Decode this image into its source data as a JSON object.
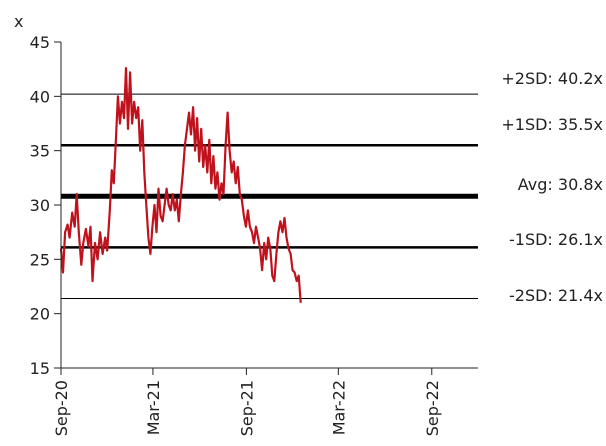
{
  "chart_data": {
    "type": "line",
    "title": "",
    "xlabel": "",
    "ylabel": "x",
    "ylim": [
      15,
      45
    ],
    "yticks": [
      "15",
      "20",
      "25",
      "30",
      "35",
      "40",
      "45"
    ],
    "xticks": [
      {
        "label": "Sep-20",
        "date": "2020-09-01"
      },
      {
        "label": "Mar-21",
        "date": "2021-03-01"
      },
      {
        "label": "Sep-21",
        "date": "2021-09-01"
      },
      {
        "label": "Mar-22",
        "date": "2022-03-01"
      },
      {
        "label": "Sep-22",
        "date": "2022-09-01"
      }
    ],
    "xlim": [
      "2020-09-01",
      "2022-12-01"
    ],
    "grid": false,
    "series": [
      {
        "color": "#c0121c",
        "points": [
          [
            "2020-09-01",
            26.0
          ],
          [
            "2020-09-05",
            23.8
          ],
          [
            "2020-09-09",
            27.5
          ],
          [
            "2020-09-14",
            28.2
          ],
          [
            "2020-09-18",
            27.0
          ],
          [
            "2020-09-23",
            29.3
          ],
          [
            "2020-09-28",
            28.0
          ],
          [
            "2020-10-02",
            31.0
          ],
          [
            "2020-10-06",
            27.5
          ],
          [
            "2020-10-11",
            24.5
          ],
          [
            "2020-10-15",
            26.5
          ],
          [
            "2020-10-20",
            27.8
          ],
          [
            "2020-10-25",
            26.2
          ],
          [
            "2020-10-29",
            28.0
          ],
          [
            "2020-11-02",
            23.0
          ],
          [
            "2020-11-07",
            26.5
          ],
          [
            "2020-11-12",
            25.0
          ],
          [
            "2020-11-17",
            27.5
          ],
          [
            "2020-11-22",
            25.5
          ],
          [
            "2020-11-27",
            27.0
          ],
          [
            "2020-12-01",
            25.8
          ],
          [
            "2020-12-06",
            29.5
          ],
          [
            "2020-12-10",
            33.2
          ],
          [
            "2020-12-14",
            32.0
          ],
          [
            "2020-12-18",
            36.0
          ],
          [
            "2020-12-22",
            40.0
          ],
          [
            "2020-12-26",
            37.5
          ],
          [
            "2020-12-30",
            39.5
          ],
          [
            "2021-01-03",
            38.0
          ],
          [
            "2021-01-07",
            42.6
          ],
          [
            "2021-01-11",
            37.0
          ],
          [
            "2021-01-15",
            42.2
          ],
          [
            "2021-01-19",
            37.5
          ],
          [
            "2021-01-23",
            39.5
          ],
          [
            "2021-01-27",
            38.0
          ],
          [
            "2021-01-31",
            39.0
          ],
          [
            "2021-02-04",
            35.0
          ],
          [
            "2021-02-08",
            37.8
          ],
          [
            "2021-02-12",
            33.0
          ],
          [
            "2021-02-16",
            30.0
          ],
          [
            "2021-02-20",
            27.0
          ],
          [
            "2021-02-24",
            25.5
          ],
          [
            "2021-02-28",
            28.0
          ],
          [
            "2021-03-04",
            30.0
          ],
          [
            "2021-03-08",
            27.5
          ],
          [
            "2021-03-12",
            31.5
          ],
          [
            "2021-03-16",
            29.0
          ],
          [
            "2021-03-20",
            28.5
          ],
          [
            "2021-03-24",
            30.0
          ],
          [
            "2021-03-28",
            31.5
          ],
          [
            "2021-04-01",
            30.0
          ],
          [
            "2021-04-05",
            29.5
          ],
          [
            "2021-04-09",
            31.0
          ],
          [
            "2021-04-13",
            29.5
          ],
          [
            "2021-04-17",
            30.5
          ],
          [
            "2021-04-21",
            28.5
          ],
          [
            "2021-04-25",
            31.0
          ],
          [
            "2021-04-29",
            33.0
          ],
          [
            "2021-05-03",
            35.5
          ],
          [
            "2021-05-07",
            37.0
          ],
          [
            "2021-05-11",
            38.5
          ],
          [
            "2021-05-15",
            36.5
          ],
          [
            "2021-05-19",
            39.0
          ],
          [
            "2021-05-23",
            35.0
          ],
          [
            "2021-05-27",
            38.0
          ],
          [
            "2021-05-31",
            34.0
          ],
          [
            "2021-06-04",
            37.0
          ],
          [
            "2021-06-08",
            33.5
          ],
          [
            "2021-06-12",
            35.5
          ],
          [
            "2021-06-16",
            33.0
          ],
          [
            "2021-06-20",
            36.0
          ],
          [
            "2021-06-24",
            32.0
          ],
          [
            "2021-06-28",
            34.5
          ],
          [
            "2021-07-02",
            31.5
          ],
          [
            "2021-07-06",
            33.0
          ],
          [
            "2021-07-10",
            30.5
          ],
          [
            "2021-07-14",
            32.0
          ],
          [
            "2021-07-18",
            31.0
          ],
          [
            "2021-07-22",
            35.5
          ],
          [
            "2021-07-26",
            38.5
          ],
          [
            "2021-07-30",
            35.0
          ],
          [
            "2021-08-03",
            33.0
          ],
          [
            "2021-08-07",
            34.0
          ],
          [
            "2021-08-11",
            32.0
          ],
          [
            "2021-08-15",
            33.5
          ],
          [
            "2021-08-19",
            31.0
          ],
          [
            "2021-08-23",
            30.5
          ],
          [
            "2021-08-27",
            29.0
          ],
          [
            "2021-08-31",
            28.0
          ],
          [
            "2021-09-04",
            29.5
          ],
          [
            "2021-09-08",
            28.0
          ],
          [
            "2021-09-12",
            27.5
          ],
          [
            "2021-09-16",
            26.5
          ],
          [
            "2021-09-20",
            28.0
          ],
          [
            "2021-09-24",
            27.0
          ],
          [
            "2021-09-28",
            26.0
          ],
          [
            "2021-10-02",
            24.0
          ],
          [
            "2021-10-06",
            26.5
          ],
          [
            "2021-10-10",
            25.0
          ],
          [
            "2021-10-14",
            27.0
          ],
          [
            "2021-10-18",
            26.0
          ],
          [
            "2021-10-22",
            23.5
          ],
          [
            "2021-10-26",
            23.0
          ],
          [
            "2021-10-30",
            25.5
          ],
          [
            "2021-11-03",
            27.5
          ],
          [
            "2021-11-07",
            28.5
          ],
          [
            "2021-11-11",
            27.5
          ],
          [
            "2021-11-15",
            28.8
          ],
          [
            "2021-11-19",
            27.0
          ],
          [
            "2021-11-23",
            26.0
          ],
          [
            "2021-11-27",
            25.5
          ],
          [
            "2021-12-01",
            24.0
          ],
          [
            "2021-12-05",
            23.8
          ],
          [
            "2021-12-09",
            23.0
          ],
          [
            "2021-12-13",
            23.5
          ],
          [
            "2021-12-17",
            21.0
          ]
        ]
      }
    ],
    "bands": [
      {
        "label": "+2SD: 40.2x",
        "value": 40.2,
        "weight": "thin"
      },
      {
        "label": "+1SD: 35.5x",
        "value": 35.5,
        "weight": "bold"
      },
      {
        "label": "Avg: 30.8x",
        "value": 30.8,
        "weight": "heavy"
      },
      {
        "label": "-1SD: 26.1x",
        "value": 26.1,
        "weight": "bold"
      },
      {
        "label": "-2SD: 21.4x",
        "value": 21.4,
        "weight": "thin"
      }
    ]
  }
}
